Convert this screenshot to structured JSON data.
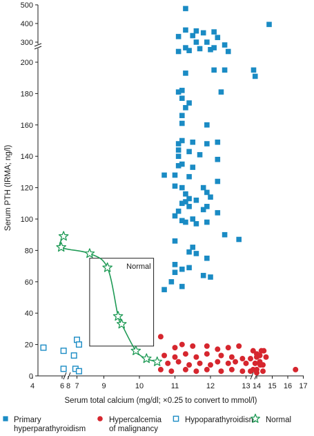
{
  "colors": {
    "primary": "#1a8bc4",
    "malignancy": "#d6262e",
    "hypo": "#1a8bc4",
    "normal": "#1e9a55",
    "axis": "#1a1a1a"
  },
  "chart_data": {
    "type": "scatter",
    "xlabel": "Serum total calcium (mg/dl; ×0.25 to convert to mmol/l)",
    "ylabel": "Serum PTH (IRMA; ng/l)",
    "x_axis": {
      "broken_axis": true,
      "low_segment_ticks": [
        4,
        6,
        7
      ],
      "main_segment_range": [
        8,
        13.5
      ],
      "main_ticks": [
        8,
        9,
        10,
        11,
        12,
        13
      ],
      "high_segment_ticks": [
        14,
        15,
        16,
        17
      ]
    },
    "y_axis": {
      "broken_axis": true,
      "main_range": [
        0,
        210
      ],
      "main_ticks": [
        0,
        20,
        40,
        60,
        80,
        100,
        120,
        140,
        160,
        180,
        200
      ],
      "upper_segment_ticks": [
        300,
        400,
        500
      ]
    },
    "normal_box": {
      "label": "Normal",
      "x_range": [
        8.6,
        10.4
      ],
      "y_range": [
        19,
        75
      ]
    },
    "legend": {
      "placement": "bottom",
      "entries": [
        {
          "key": "primary",
          "lines": [
            "Primary",
            "hyperparathyroidism"
          ]
        },
        {
          "key": "malignancy",
          "lines": [
            "Hypercalcemia",
            "of malignancy"
          ]
        },
        {
          "key": "hypo",
          "lines": [
            "Hypoparathyroidism"
          ]
        },
        {
          "key": "normal",
          "lines": [
            "Normal"
          ]
        }
      ]
    },
    "series": [
      {
        "key": "primary",
        "name": "Primary hyperparathyroidism",
        "marker": "filled-square",
        "points": [
          [
            11.3,
            480
          ],
          [
            14.8,
            395
          ],
          [
            11.3,
            365
          ],
          [
            11.6,
            360
          ],
          [
            11.8,
            350
          ],
          [
            12.1,
            355
          ],
          [
            11.1,
            330
          ],
          [
            11.5,
            335
          ],
          [
            12.2,
            325
          ],
          [
            11.6,
            300
          ],
          [
            11.9,
            300
          ],
          [
            12.4,
            285
          ],
          [
            11.3,
            270
          ],
          [
            11.7,
            265
          ],
          [
            12.1,
            270
          ],
          [
            11.1,
            250
          ],
          [
            11.4,
            255
          ],
          [
            12.0,
            260
          ],
          [
            12.5,
            250
          ],
          [
            12.1,
            195
          ],
          [
            12.4,
            195
          ],
          [
            11.3,
            193
          ],
          [
            13.8,
            195
          ],
          [
            13.9,
            191
          ],
          [
            11.1,
            181
          ],
          [
            11.2,
            182
          ],
          [
            12.3,
            181
          ],
          [
            11.2,
            177
          ],
          [
            11.3,
            171
          ],
          [
            11.2,
            166
          ],
          [
            11.4,
            174
          ],
          [
            11.2,
            161
          ],
          [
            11.9,
            160
          ],
          [
            11.2,
            150
          ],
          [
            11.5,
            149
          ],
          [
            11.9,
            148
          ],
          [
            12.2,
            149
          ],
          [
            11.1,
            148
          ],
          [
            11.1,
            144
          ],
          [
            11.1,
            140
          ],
          [
            11.4,
            143
          ],
          [
            11.7,
            141
          ],
          [
            12.2,
            138
          ],
          [
            11.2,
            135
          ],
          [
            11.1,
            134
          ],
          [
            11.5,
            133
          ],
          [
            10.7,
            128
          ],
          [
            11.0,
            128
          ],
          [
            11.4,
            127
          ],
          [
            12.2,
            124
          ],
          [
            11.0,
            121
          ],
          [
            11.2,
            120
          ],
          [
            11.8,
            120
          ],
          [
            11.9,
            117
          ],
          [
            11.3,
            116
          ],
          [
            11.4,
            113
          ],
          [
            11.6,
            112
          ],
          [
            12.0,
            114
          ],
          [
            11.3,
            111
          ],
          [
            11.2,
            110
          ],
          [
            11.4,
            108
          ],
          [
            11.9,
            108
          ],
          [
            11.1,
            105
          ],
          [
            11.0,
            102
          ],
          [
            11.8,
            106
          ],
          [
            12.2,
            104
          ],
          [
            11.5,
            100
          ],
          [
            11.2,
            99
          ],
          [
            11.3,
            98
          ],
          [
            11.6,
            97
          ],
          [
            11.9,
            98
          ],
          [
            12.4,
            90
          ],
          [
            12.8,
            87
          ],
          [
            11.0,
            86
          ],
          [
            11.5,
            82
          ],
          [
            11.6,
            78
          ],
          [
            11.4,
            79
          ],
          [
            11.9,
            75
          ],
          [
            11.0,
            71
          ],
          [
            11.2,
            68
          ],
          [
            11.0,
            66
          ],
          [
            11.4,
            69
          ],
          [
            11.8,
            64
          ],
          [
            12.0,
            63
          ],
          [
            10.9,
            60
          ],
          [
            11.2,
            57
          ],
          [
            10.7,
            55
          ]
        ]
      },
      {
        "key": "malignancy",
        "name": "Hypercalcemia of malignancy",
        "marker": "filled-circle",
        "points": [
          [
            10.6,
            25
          ],
          [
            11.0,
            18
          ],
          [
            11.2,
            20
          ],
          [
            11.5,
            19
          ],
          [
            11.9,
            19
          ],
          [
            12.2,
            17
          ],
          [
            12.5,
            18
          ],
          [
            12.8,
            19
          ],
          [
            13.2,
            16
          ],
          [
            13.5,
            16
          ],
          [
            14.0,
            14
          ],
          [
            14.3,
            16
          ],
          [
            10.7,
            13
          ],
          [
            11.0,
            12
          ],
          [
            11.3,
            14
          ],
          [
            11.6,
            12
          ],
          [
            11.9,
            14
          ],
          [
            12.3,
            13
          ],
          [
            12.6,
            12
          ],
          [
            12.9,
            11
          ],
          [
            13.3,
            12
          ],
          [
            13.6,
            11
          ],
          [
            14.2,
            13
          ],
          [
            14.6,
            12
          ],
          [
            10.8,
            8
          ],
          [
            11.1,
            9
          ],
          [
            11.4,
            7
          ],
          [
            11.7,
            8
          ],
          [
            12.0,
            7
          ],
          [
            12.2,
            9
          ],
          [
            12.5,
            8
          ],
          [
            12.7,
            9
          ],
          [
            13.0,
            8
          ],
          [
            13.4,
            7
          ],
          [
            13.9,
            8
          ],
          [
            14.2,
            9
          ],
          [
            14.4,
            7
          ],
          [
            10.6,
            4
          ],
          [
            10.9,
            3
          ],
          [
            11.3,
            4
          ],
          [
            11.6,
            3
          ],
          [
            11.9,
            4
          ],
          [
            12.3,
            3
          ],
          [
            12.6,
            4
          ],
          [
            12.9,
            3
          ],
          [
            13.2,
            4
          ],
          [
            13.6,
            3
          ],
          [
            14.0,
            4
          ],
          [
            14.4,
            3
          ],
          [
            16.5,
            4
          ],
          [
            14.0,
            2
          ]
        ]
      },
      {
        "key": "hypo",
        "name": "Hypoparathyroidism",
        "marker": "open-square",
        "points": [
          [
            7.0,
            23
          ],
          [
            6.1,
            16
          ],
          [
            7.3,
            18
          ],
          [
            8.3,
            20
          ],
          [
            6.8,
            13
          ],
          [
            6.1,
            4.5
          ],
          [
            6.9,
            4.5
          ],
          [
            8.3,
            3
          ]
        ]
      },
      {
        "key": "normal",
        "name": "Normal",
        "marker": "open-star",
        "curve": "fitted-line",
        "points": [
          [
            6.1,
            89
          ],
          [
            7.8,
            82
          ],
          [
            8.6,
            78
          ],
          [
            9.1,
            69
          ],
          [
            9.4,
            38
          ],
          [
            9.5,
            33
          ],
          [
            9.9,
            16
          ],
          [
            10.2,
            11
          ],
          [
            10.5,
            9
          ]
        ]
      }
    ]
  }
}
